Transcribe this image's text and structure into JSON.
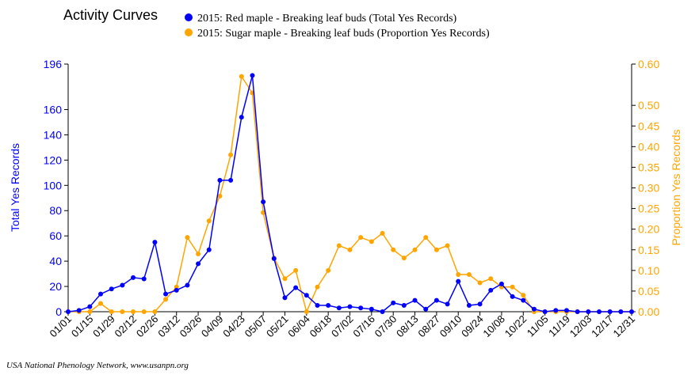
{
  "title": "Activity Curves",
  "credit": "USA National Phenology Network, www.usanpn.org",
  "colors": {
    "series1": "#0000ff",
    "series2": "#ffa500"
  },
  "chart_data": {
    "type": "line",
    "title": "Activity Curves",
    "xlabel": "",
    "ylabel_left": "Total Yes Records",
    "ylabel_right": "Proportion Yes Records",
    "ylim_left": [
      0,
      196
    ],
    "ylim_right": [
      0,
      0.6
    ],
    "y_ticks_left": [
      "0",
      "20",
      "40",
      "60",
      "80",
      "100",
      "120",
      "140",
      "160",
      "196"
    ],
    "y_tick_values_left": [
      0,
      20,
      40,
      60,
      80,
      100,
      120,
      140,
      160,
      196
    ],
    "y_ticks_right": [
      "0.00",
      "0.05",
      "0.10",
      "0.15",
      "0.20",
      "0.25",
      "0.30",
      "0.35",
      "0.40",
      "0.45",
      "0.50",
      "0.60"
    ],
    "y_tick_values_right": [
      0,
      0.05,
      0.1,
      0.15,
      0.2,
      0.25,
      0.3,
      0.35,
      0.4,
      0.45,
      0.5,
      0.6
    ],
    "x_ticks": [
      "01/01",
      "01/15",
      "01/29",
      "02/12",
      "02/26",
      "03/12",
      "03/26",
      "04/09",
      "04/23",
      "05/07",
      "05/21",
      "06/04",
      "06/18",
      "07/02",
      "07/16",
      "07/30",
      "08/13",
      "08/27",
      "09/10",
      "09/24",
      "10/08",
      "10/22",
      "11/05",
      "11/19",
      "12/03",
      "12/17",
      "12/31"
    ],
    "grid": false,
    "legend_position": "top",
    "series": [
      {
        "name": "2015: Red maple - Breaking leaf buds (Total Yes Records)",
        "axis": "left",
        "x": [
          "01/01",
          "01/08",
          "01/15",
          "01/22",
          "01/29",
          "02/05",
          "02/12",
          "02/19",
          "02/26",
          "03/05",
          "03/12",
          "03/19",
          "03/26",
          "04/02",
          "04/09",
          "04/16",
          "04/23",
          "04/30",
          "05/07",
          "05/14",
          "05/21",
          "05/28",
          "06/04",
          "06/11",
          "06/18",
          "06/25",
          "07/02",
          "07/09",
          "07/16",
          "07/23",
          "07/30",
          "08/06",
          "08/13",
          "08/20",
          "08/27",
          "09/03",
          "09/10",
          "09/17",
          "09/24",
          "10/01",
          "10/08",
          "10/15",
          "10/22",
          "10/29",
          "11/05",
          "11/12",
          "11/19",
          "11/26",
          "12/03",
          "12/10",
          "12/17",
          "12/24",
          "12/31"
        ],
        "values": [
          0,
          1,
          4,
          14,
          18,
          21,
          27,
          26,
          55,
          14,
          17,
          21,
          38,
          49,
          104,
          104,
          154,
          187,
          87,
          42,
          11,
          19,
          13,
          5,
          5,
          3,
          4,
          3,
          2,
          0,
          7,
          5,
          9,
          2,
          9,
          6,
          24,
          5,
          6,
          17,
          22,
          12,
          9,
          2,
          0,
          1,
          1,
          0,
          0,
          0,
          0,
          0,
          0
        ]
      },
      {
        "name": "2015: Sugar maple - Breaking leaf buds (Proportion Yes Records)",
        "axis": "right",
        "x": [
          "01/01",
          "01/08",
          "01/15",
          "01/22",
          "01/29",
          "02/05",
          "02/12",
          "02/19",
          "02/26",
          "03/05",
          "03/12",
          "03/19",
          "03/26",
          "04/02",
          "04/09",
          "04/16",
          "04/23",
          "04/30",
          "05/07",
          "05/14",
          "05/21",
          "05/28",
          "06/04",
          "06/11",
          "06/18",
          "06/25",
          "07/02",
          "07/09",
          "07/16",
          "07/23",
          "07/30",
          "08/06",
          "08/13",
          "08/20",
          "08/27",
          "09/03",
          "09/10",
          "09/17",
          "09/24",
          "10/01",
          "10/08",
          "10/15",
          "10/22",
          "10/29",
          "11/05",
          "11/12",
          "11/19",
          "11/26",
          "12/03",
          "12/10",
          "12/17",
          "12/24",
          "12/31"
        ],
        "values": [
          0,
          0,
          0,
          0.02,
          0,
          0,
          0,
          0,
          0,
          0.03,
          0.06,
          0.18,
          0.14,
          0.22,
          0.28,
          0.38,
          0.57,
          0.53,
          0.24,
          0.13,
          0.08,
          0.1,
          0,
          0.06,
          0.1,
          0.16,
          0.15,
          0.18,
          0.17,
          0.19,
          0.15,
          0.13,
          0.15,
          0.18,
          0.15,
          0.16,
          0.09,
          0.09,
          0.07,
          0.08,
          0.06,
          0.06,
          0.04,
          0,
          0,
          0,
          0,
          0,
          0,
          0,
          0,
          0,
          0
        ]
      }
    ]
  }
}
